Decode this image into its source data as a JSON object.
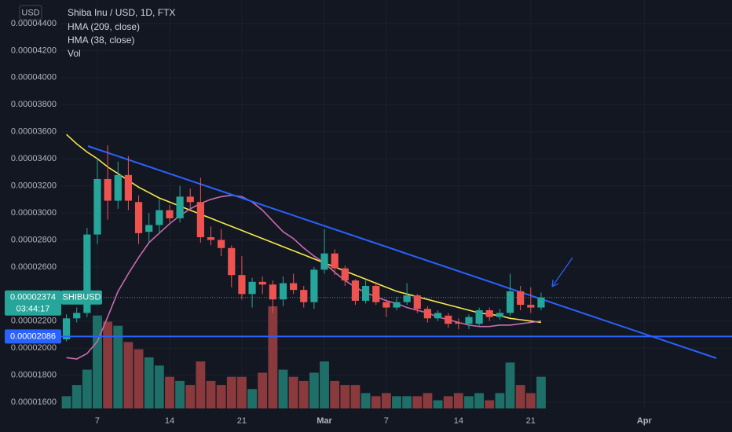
{
  "chart_data": {
    "type": "candlestick",
    "title": "Shiba Inu / USD, 1D, FTX",
    "currency": "USD",
    "categories": [
      null,
      null,
      null,
      "7",
      null,
      null,
      null,
      null,
      null,
      null,
      "14",
      null,
      null,
      null,
      null,
      null,
      null,
      "21",
      null,
      null,
      null,
      null,
      null,
      null,
      null,
      "Mar",
      null,
      null,
      null,
      null,
      null,
      "7",
      null,
      null,
      null,
      null,
      null,
      null,
      "14",
      null,
      null,
      null,
      null,
      null,
      null,
      "21",
      null,
      null,
      null,
      null,
      null,
      null,
      null,
      null,
      null,
      null,
      "Apr",
      null,
      null,
      null,
      null,
      null,
      null,
      null,
      null
    ],
    "open": [
      2.065e-05,
      2.22e-05,
      2.26e-05,
      2.84e-05,
      3.25e-05,
      3.09e-05,
      3.28e-05,
      3.08e-05,
      2.86e-05,
      2.91e-05,
      3.02e-05,
      2.96e-05,
      3.12e-05,
      3.08e-05,
      2.82e-05,
      2.8e-05,
      2.74e-05,
      2.54e-05,
      2.4e-05,
      2.49e-05,
      2.47e-05,
      2.36e-05,
      2.48e-05,
      2.43e-05,
      2.34e-05,
      2.58e-05,
      2.7e-05,
      2.59e-05,
      2.5e-05,
      2.35e-05,
      2.46e-05,
      2.34e-05,
      2.3e-05,
      2.34e-05,
      2.39e-05,
      2.29e-05,
      2.22e-05,
      2.24e-05,
      2.19e-05,
      2.18e-05,
      2.18e-05,
      2.28e-05,
      2.23e-05,
      2.26e-05,
      2.42e-05,
      2.32e-05,
      2.3e-05,
      null,
      null,
      null,
      null,
      null,
      null,
      null,
      null,
      null,
      null,
      null,
      null,
      null,
      null,
      null,
      null,
      null,
      null
    ],
    "high": [
      2.25e-05,
      2.3e-05,
      2.89e-05,
      3.4e-05,
      3.5e-05,
      3.38e-05,
      3.42e-05,
      3.13e-05,
      3e-05,
      3.1e-05,
      3.06e-05,
      3.2e-05,
      3.18e-05,
      3.26e-05,
      2.9e-05,
      2.88e-05,
      2.76e-05,
      2.68e-05,
      2.52e-05,
      2.53e-05,
      2.5e-05,
      2.53e-05,
      2.55e-05,
      2.46e-05,
      2.6e-05,
      2.88e-05,
      2.73e-05,
      2.61e-05,
      2.51e-05,
      2.5e-05,
      2.49e-05,
      2.36e-05,
      2.38e-05,
      2.48e-05,
      2.4e-05,
      2.31e-05,
      2.28e-05,
      2.26e-05,
      2.22e-05,
      2.25e-05,
      2.3e-05,
      2.3e-05,
      2.29e-05,
      2.55e-05,
      2.46e-05,
      2.45e-05,
      2.41e-05,
      null,
      null,
      null,
      null,
      null,
      null,
      null,
      null,
      null,
      null,
      null,
      null,
      null,
      null,
      null,
      null,
      null,
      null
    ],
    "low": [
      2.05e-05,
      2.19e-05,
      2.23e-05,
      2.77e-05,
      2.95e-05,
      3.03e-05,
      3.02e-05,
      2.77e-05,
      2.78e-05,
      2.85e-05,
      2.93e-05,
      2.93e-05,
      3.03e-05,
      2.78e-05,
      2.76e-05,
      2.68e-05,
      2.45e-05,
      2.36e-05,
      2.3e-05,
      2.4e-05,
      2.26e-05,
      2.31e-05,
      2.4e-05,
      2.3e-05,
      2.29e-05,
      2.55e-05,
      2.54e-05,
      2.46e-05,
      2.32e-05,
      2.33e-05,
      2.32e-05,
      2.23e-05,
      2.28e-05,
      2.32e-05,
      2.26e-05,
      2.19e-05,
      2.2e-05,
      2.15e-05,
      2.14e-05,
      2.14e-05,
      2.16e-05,
      2.2e-05,
      2.21e-05,
      2.24e-05,
      2.28e-05,
      2.26e-05,
      2.28e-05,
      null,
      null,
      null,
      null,
      null,
      null,
      null,
      null,
      null,
      null,
      null,
      null,
      null,
      null,
      null,
      null,
      null,
      null
    ],
    "close": [
      2.22e-05,
      2.26e-05,
      2.84e-05,
      3.25e-05,
      3.09e-05,
      3.28e-05,
      3.09e-05,
      2.85e-05,
      2.91e-05,
      3.02e-05,
      2.96e-05,
      3.12e-05,
      3.08e-05,
      2.82e-05,
      2.8e-05,
      2.74e-05,
      2.54e-05,
      2.4e-05,
      2.49e-05,
      2.47e-05,
      2.36e-05,
      2.48e-05,
      2.43e-05,
      2.34e-05,
      2.58e-05,
      2.7e-05,
      2.59e-05,
      2.5e-05,
      2.35e-05,
      2.46e-05,
      2.34e-05,
      2.3e-05,
      2.34e-05,
      2.39e-05,
      2.29e-05,
      2.22e-05,
      2.26e-05,
      2.18e-05,
      2.18e-05,
      2.23e-05,
      2.28e-05,
      2.23e-05,
      2.26e-05,
      2.42e-05,
      2.32e-05,
      2.3e-05,
      2.374e-05,
      null,
      null,
      null,
      null,
      null,
      null,
      null,
      null,
      null,
      null,
      null,
      null,
      null,
      null,
      null,
      null,
      null,
      null
    ],
    "up_color": "#26a69a",
    "down_color": "#ef5350",
    "series": [
      {
        "name": "HMA (209, close)",
        "color": "#f5e94a",
        "values": [
          3.58e-05,
          3.51e-05,
          3.45e-05,
          3.4e-05,
          3.34e-05,
          3.29e-05,
          3.24e-05,
          3.19e-05,
          3.15e-05,
          3.11e-05,
          3.08e-05,
          3.05e-05,
          3.02e-05,
          2.99e-05,
          2.96e-05,
          2.93e-05,
          2.9e-05,
          2.87e-05,
          2.84e-05,
          2.81e-05,
          2.78e-05,
          2.75e-05,
          2.72e-05,
          2.69e-05,
          2.66e-05,
          2.63e-05,
          2.6e-05,
          2.57e-05,
          2.54e-05,
          2.51e-05,
          2.48e-05,
          2.45e-05,
          2.42e-05,
          2.4e-05,
          2.38e-05,
          2.36e-05,
          2.34e-05,
          2.32e-05,
          2.3e-05,
          2.28e-05,
          2.26e-05,
          2.25e-05,
          2.24e-05,
          2.22e-05,
          2.21e-05,
          2.2e-05,
          2.19e-05,
          null,
          null,
          null,
          null,
          null,
          null,
          null,
          null,
          null,
          null,
          null,
          null,
          null,
          null,
          null,
          null,
          null,
          null
        ]
      },
      {
        "name": "HMA (38, close)",
        "color": "#c86bb0",
        "values": [
          1.93e-05,
          1.92e-05,
          1.96e-05,
          2.05e-05,
          2.23e-05,
          2.42e-05,
          2.55e-05,
          2.67e-05,
          2.78e-05,
          2.85e-05,
          2.92e-05,
          2.98e-05,
          3.03e-05,
          3.07e-05,
          3.1e-05,
          3.12e-05,
          3.13e-05,
          3.12e-05,
          3.08e-05,
          3.02e-05,
          2.94e-05,
          2.86e-05,
          2.81e-05,
          2.74e-05,
          2.68e-05,
          2.63e-05,
          2.56e-05,
          2.5e-05,
          2.45e-05,
          2.41e-05,
          2.38e-05,
          2.35e-05,
          2.33e-05,
          2.3e-05,
          2.28e-05,
          2.26e-05,
          2.23e-05,
          2.21e-05,
          2.19e-05,
          2.17e-05,
          2.16e-05,
          2.16e-05,
          2.17e-05,
          2.17e-05,
          2.18e-05,
          2.19e-05,
          2.2e-05,
          null,
          null,
          null,
          null,
          null,
          null,
          null,
          null,
          null,
          null,
          null,
          null,
          null,
          null,
          null,
          null,
          null,
          null
        ]
      }
    ],
    "volume": {
      "name": "Vol",
      "up_color": "#1f6f69",
      "down_color": "#8a3a3c",
      "axis": "y2",
      "values": [
        12,
        23,
        38,
        91,
        85,
        81,
        65,
        58,
        50,
        42,
        31,
        27,
        23,
        46,
        27,
        23,
        31,
        31,
        19,
        35,
        100,
        38,
        31,
        27,
        35,
        46,
        27,
        23,
        23,
        15,
        12,
        15,
        12,
        12,
        12,
        15,
        8,
        12,
        15,
        12,
        15,
        8,
        15,
        45,
        23,
        15,
        31,
        null,
        null,
        null,
        null,
        null,
        null,
        null,
        null,
        null,
        null,
        null,
        null,
        null,
        null,
        null,
        null,
        null,
        null
      ]
    },
    "ylim": [
      1.554e-05,
      4.574e-05
    ],
    "y2lim": [
      0,
      400
    ],
    "yticks": [
      {
        "value": 1.6e-05,
        "label": "0.00001600"
      },
      {
        "value": 1.8e-05,
        "label": "0.00001800"
      },
      {
        "value": 2e-05,
        "label": "0.00002000"
      },
      {
        "value": 2.2e-05,
        "label": "0.00002200"
      },
      {
        "value": 2.6e-05,
        "label": "0.00002600"
      },
      {
        "value": 2.8e-05,
        "label": "0.00002800"
      },
      {
        "value": 3e-05,
        "label": "0.00003000"
      },
      {
        "value": 3.2e-05,
        "label": "0.00003200"
      },
      {
        "value": 3.4e-05,
        "label": "0.00003400"
      },
      {
        "value": 3.6e-05,
        "label": "0.00003600"
      },
      {
        "value": 3.8e-05,
        "label": "0.00003800"
      },
      {
        "value": 4e-05,
        "label": "0.00004000"
      },
      {
        "value": 4.2e-05,
        "label": "0.00004200"
      },
      {
        "value": 4.4e-05,
        "label": "0.00004400"
      }
    ],
    "grid": true,
    "last_price": {
      "value": 2.374e-05,
      "symbol": "SHIBUSD",
      "countdown": "03:44:17",
      "color": "#26a69a"
    },
    "horizontal_line": {
      "value": 2.086e-05,
      "color": "#2962ff"
    }
  }
}
